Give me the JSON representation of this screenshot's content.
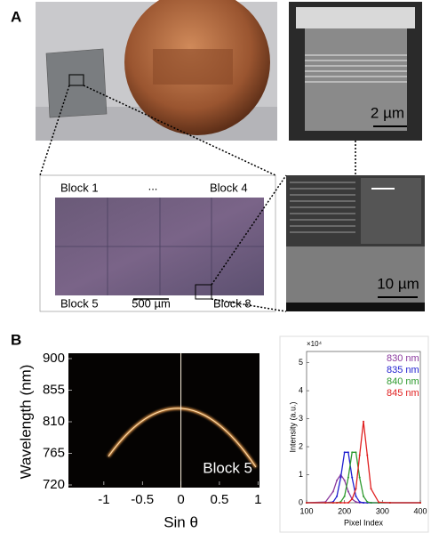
{
  "figure": {
    "panel_a": {
      "label": "A",
      "sem_top_scale": "2 µm",
      "chip_labels": [
        "Block 1",
        "...",
        "Block 4",
        "Block 5",
        "500 µm",
        "Block 8"
      ],
      "sem_bottom_scale": "10 µm"
    },
    "panel_b": {
      "label": "B"
    }
  },
  "chart_data": [
    {
      "type": "heatmap",
      "ylabel": "Wavelength (nm)",
      "xlabel": "Sin θ",
      "annotation": "Block 5",
      "xlim": [
        -1.46,
        1.02
      ],
      "xticks": [
        -1,
        -0.5,
        0,
        0.5,
        1
      ],
      "ylim": [
        720,
        900
      ],
      "yticks": [
        720,
        765,
        810,
        855,
        900
      ]
    },
    {
      "type": "line",
      "xlabel": "Pixel Index",
      "ylabel": "Intensity (a.u.)",
      "multiplier": "×10⁴",
      "x": [
        100,
        150,
        170,
        180,
        190,
        200,
        210,
        220,
        230,
        240,
        250,
        260,
        270,
        290,
        320,
        400
      ],
      "xlim": [
        100,
        400
      ],
      "xticks": [
        100,
        200,
        300,
        400
      ],
      "ylim": [
        0,
        5.4
      ],
      "yticks": [
        0,
        1,
        2,
        3,
        4,
        5
      ],
      "series": [
        {
          "name": "830 nm",
          "color": "#8b3a9e",
          "values": [
            0,
            0.03,
            0.4,
            0.8,
            1.0,
            0.8,
            0.4,
            0.13,
            0.03,
            0,
            0,
            0,
            0,
            0,
            0,
            0
          ]
        },
        {
          "name": "835 nm",
          "color": "#1f1fd0",
          "values": [
            0,
            0,
            0.03,
            0.23,
            0.9,
            1.8,
            1.8,
            0.9,
            0.23,
            0.03,
            0,
            0,
            0,
            0,
            0,
            0
          ]
        },
        {
          "name": "840 nm",
          "color": "#2e9a2e",
          "values": [
            0,
            0,
            0,
            0,
            0.03,
            0.23,
            0.9,
            1.8,
            1.8,
            0.9,
            0.23,
            0.03,
            0,
            0,
            0,
            0
          ]
        },
        {
          "name": "845 nm",
          "color": "#e02020",
          "values": [
            0,
            0,
            0,
            0,
            0,
            0,
            0,
            0.13,
            0.5,
            1.7,
            2.9,
            1.7,
            0.5,
            0.02,
            0,
            0
          ]
        }
      ]
    }
  ]
}
